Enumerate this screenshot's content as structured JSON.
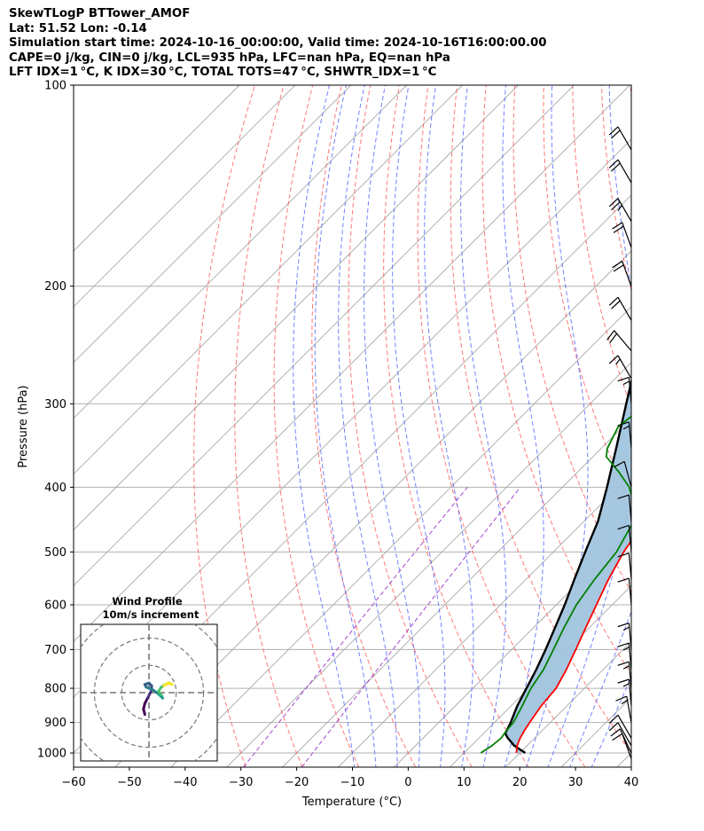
{
  "header": {
    "line1": "SkewTLogP BTTower_AMOF",
    "line2": "Lat: 51.52   Lon: -0.14",
    "line3": "Simulation start time: 2024-10-16_00:00:00, Valid time: 2024-10-16T16:00:00.00",
    "line4": "CAPE=0 j/kg, CIN=0 j/kg, LCL=935 hPa, LFC=nan hPa, EQ=nan hPa",
    "line5": "LFT IDX=1 °C, K IDX=30 °C, TOTAL TOTS=47 °C, SHWTR_IDX=1 °C"
  },
  "chart_data": {
    "type": "skewt-logp",
    "xlabel": "Temperature (°C)",
    "ylabel": "Pressure (hPa)",
    "xlim": [
      -60,
      40
    ],
    "ylim": [
      1050,
      100
    ],
    "x_ticks": [
      -60,
      -50,
      -40,
      -30,
      -20,
      -10,
      0,
      10,
      20,
      30,
      40
    ],
    "x_tick_labels": [
      "−60",
      "−50",
      "−40",
      "−30",
      "−20",
      "−10",
      "0",
      "10",
      "20",
      "30",
      "40"
    ],
    "y_ticks": [
      1000,
      900,
      800,
      700,
      600,
      500,
      400,
      300,
      200,
      100
    ],
    "y_tick_labels": [
      "1000",
      "900",
      "800",
      "700",
      "600",
      "500",
      "400",
      "300",
      "200",
      "100"
    ],
    "grid": true,
    "colors": {
      "temperature": "#ff0000",
      "dewpoint": "#008000",
      "parcel": "#000000",
      "shading": "#a1c4de",
      "isotherm": "#a9a9a9",
      "dry_adiabat": "#ff6060",
      "moist_adiabat": "#5b6bff",
      "mixing_ratio": "#9b30c9",
      "grid": "#b0b0b0"
    },
    "temperature": {
      "name": "Temperature",
      "points": [
        [
          1000,
          19.4
        ],
        [
          975,
          18.2
        ],
        [
          950,
          17.4
        ],
        [
          925,
          16.8
        ],
        [
          900,
          16.3
        ],
        [
          850,
          15.4
        ],
        [
          800,
          14.9
        ],
        [
          750,
          13.4
        ],
        [
          700,
          11.5
        ],
        [
          650,
          9.4
        ],
        [
          600,
          7.2
        ],
        [
          550,
          4.8
        ],
        [
          500,
          2.6
        ],
        [
          450,
          0.9
        ],
        [
          400,
          -2.5
        ],
        [
          350,
          -6.3
        ],
        [
          300,
          -10.8
        ],
        [
          250,
          -16.0
        ],
        [
          225,
          -20.3
        ],
        [
          200,
          -24.2
        ],
        [
          175,
          -26.8
        ],
        [
          150,
          -31.6
        ],
        [
          125,
          -38.6
        ],
        [
          110,
          -43.5
        ],
        [
          100,
          -47.6
        ]
      ]
    },
    "dewpoint": {
      "name": "Dewpoint",
      "points": [
        [
          1000,
          13.0
        ],
        [
          975,
          13.7
        ],
        [
          950,
          14.0
        ],
        [
          925,
          13.6
        ],
        [
          900,
          13.4
        ],
        [
          850,
          12.0
        ],
        [
          800,
          10.4
        ],
        [
          750,
          9.3
        ],
        [
          700,
          7.5
        ],
        [
          650,
          5.5
        ],
        [
          600,
          3.6
        ],
        [
          550,
          2.3
        ],
        [
          500,
          1.3
        ],
        [
          450,
          -1.1
        ],
        [
          425,
          -4.0
        ],
        [
          400,
          -8.0
        ],
        [
          380,
          -12.5
        ],
        [
          360,
          -17.6
        ],
        [
          350,
          -18.9
        ],
        [
          325,
          -20.8
        ],
        [
          300,
          -19.8
        ],
        [
          275,
          -19.6
        ],
        [
          250,
          -23.4
        ],
        [
          230,
          -24.8
        ],
        [
          212,
          -26.4
        ],
        [
          200,
          -26.2
        ],
        [
          185,
          -30.2
        ],
        [
          175,
          -34.3
        ],
        [
          160,
          -38.0
        ],
        [
          140,
          -41.7
        ],
        [
          125,
          -44.0
        ],
        [
          110,
          -47.1
        ],
        [
          100,
          -51.3
        ]
      ]
    },
    "parcel": {
      "name": "Parcel profile",
      "points": [
        [
          1000,
          21.0
        ],
        [
          975,
          17.7
        ],
        [
          950,
          15.2
        ],
        [
          935,
          13.9
        ],
        [
          900,
          12.9
        ],
        [
          850,
          11.1
        ],
        [
          800,
          9.6
        ],
        [
          750,
          8.0
        ],
        [
          700,
          6.1
        ],
        [
          650,
          3.9
        ],
        [
          600,
          1.5
        ],
        [
          550,
          -1.3
        ],
        [
          500,
          -4.3
        ],
        [
          450,
          -7.5
        ],
        [
          400,
          -12.0
        ],
        [
          350,
          -17.3
        ],
        [
          300,
          -23.5
        ],
        [
          250,
          -30.8
        ],
        [
          200,
          -40.8
        ],
        [
          175,
          -46.5
        ],
        [
          150,
          -53.5
        ],
        [
          125,
          -62.0
        ],
        [
          100,
          -74.2
        ]
      ]
    },
    "wind_barbs": [
      {
        "pressure": 1020,
        "speed_kt": 10,
        "direction": 340
      },
      {
        "pressure": 1000,
        "speed_kt": 10,
        "direction": 335
      },
      {
        "pressure": 975,
        "speed_kt": 10,
        "direction": 330
      },
      {
        "pressure": 950,
        "speed_kt": 10,
        "direction": 330
      },
      {
        "pressure": 900,
        "speed_kt": 15,
        "direction": 350
      },
      {
        "pressure": 850,
        "speed_kt": 15,
        "direction": 355
      },
      {
        "pressure": 800,
        "speed_kt": 15,
        "direction": 355
      },
      {
        "pressure": 750,
        "speed_kt": 15,
        "direction": 355
      },
      {
        "pressure": 700,
        "speed_kt": 15,
        "direction": 355
      },
      {
        "pressure": 600,
        "speed_kt": 10,
        "direction": 355
      },
      {
        "pressure": 550,
        "speed_kt": 10,
        "direction": 355
      },
      {
        "pressure": 500,
        "speed_kt": 10,
        "direction": 355
      },
      {
        "pressure": 450,
        "speed_kt": 10,
        "direction": 355
      },
      {
        "pressure": 400,
        "speed_kt": 10,
        "direction": 345
      },
      {
        "pressure": 350,
        "speed_kt": 15,
        "direction": 355
      },
      {
        "pressure": 300,
        "speed_kt": 15,
        "direction": 355
      },
      {
        "pressure": 275,
        "speed_kt": 15,
        "direction": 330
      },
      {
        "pressure": 250,
        "speed_kt": 20,
        "direction": 320
      },
      {
        "pressure": 225,
        "speed_kt": 20,
        "direction": 330
      },
      {
        "pressure": 200,
        "speed_kt": 20,
        "direction": 340
      },
      {
        "pressure": 175,
        "speed_kt": 20,
        "direction": 340
      },
      {
        "pressure": 160,
        "speed_kt": 25,
        "direction": 330
      },
      {
        "pressure": 140,
        "speed_kt": 20,
        "direction": 330
      },
      {
        "pressure": 125,
        "speed_kt": 20,
        "direction": 330
      }
    ],
    "hodograph": {
      "title": "Wind Profile",
      "subtitle": "10m/s increment",
      "rings_ms": [
        10,
        20,
        30
      ],
      "range_ms": 25,
      "points": [
        [
          -1.5,
          -8.0
        ],
        [
          -2.0,
          -6.0
        ],
        [
          -1.5,
          -4.0
        ],
        [
          -0.5,
          -2.0
        ],
        [
          0.8,
          0.5
        ],
        [
          1.0,
          2.5
        ],
        [
          0.0,
          3.5
        ],
        [
          -1.5,
          3.0
        ],
        [
          -1.0,
          2.0
        ],
        [
          1.5,
          1.0
        ],
        [
          3.5,
          -0.5
        ],
        [
          5.0,
          -2.0
        ],
        [
          4.5,
          -0.8
        ],
        [
          3.5,
          0.5
        ],
        [
          4.5,
          2.0
        ],
        [
          6.0,
          3.0
        ],
        [
          7.5,
          3.5
        ],
        [
          8.5,
          3.0
        ],
        [
          7.0,
          3.5
        ],
        [
          5.5,
          2.5
        ]
      ]
    }
  }
}
